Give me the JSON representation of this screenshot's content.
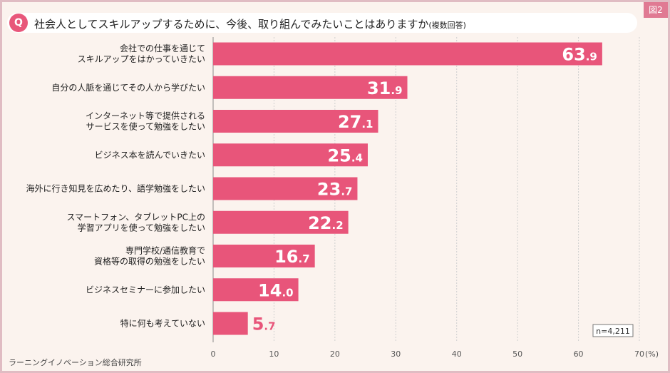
{
  "header": {
    "q_label": "Q",
    "question": "社会人としてスキルアップするために、今後、取り組んでみたいことはありますか",
    "question_sub": "(複数回答)",
    "figure_tag": "図2"
  },
  "source": "ラーニングイノベーション総合研究所",
  "colors": {
    "bar": "#e8557a",
    "value_text": "#ffffff",
    "value_text_outside": "#e8557a",
    "background": "#fbf3ee",
    "border": "#e0bcc3"
  },
  "chart_data": {
    "type": "bar",
    "orientation": "horizontal",
    "categories": [
      [
        "会社での仕事を通じて",
        "スキルアップをはかっていきたい"
      ],
      [
        "自分の人脈を通じてその人から学びたい"
      ],
      [
        "インターネット等で提供される",
        "サービスを使って勉強をしたい"
      ],
      [
        "ビジネス本を読んでいきたい"
      ],
      [
        "海外に行き知見を広めたり、語学勉強をしたい"
      ],
      [
        "スマートフォン、タブレットPC上の",
        "学習アプリを使って勉強をしたい"
      ],
      [
        "専門学校/通信教育で",
        "資格等の取得の勉強をしたい"
      ],
      [
        "ビジネスセミナーに参加したい"
      ],
      [
        "特に何も考えていない"
      ]
    ],
    "values": [
      63.9,
      31.9,
      27.1,
      25.4,
      23.7,
      22.2,
      16.7,
      14.0,
      5.7
    ],
    "value_labels": [
      {
        "int": "63",
        "dec": ".9"
      },
      {
        "int": "31",
        "dec": ".9"
      },
      {
        "int": "27",
        "dec": ".1"
      },
      {
        "int": "25",
        "dec": ".4"
      },
      {
        "int": "23",
        "dec": ".7"
      },
      {
        "int": "22",
        "dec": ".2"
      },
      {
        "int": "16",
        "dec": ".7"
      },
      {
        "int": "14",
        "dec": ".0"
      },
      {
        "int": "5",
        "dec": ".7"
      }
    ],
    "xlim": [
      0,
      70
    ],
    "xticks": [
      "0",
      "10",
      "20",
      "30",
      "40",
      "50",
      "60",
      "70"
    ],
    "x_unit": "(%)",
    "note": "n=4,211",
    "grid": true
  }
}
